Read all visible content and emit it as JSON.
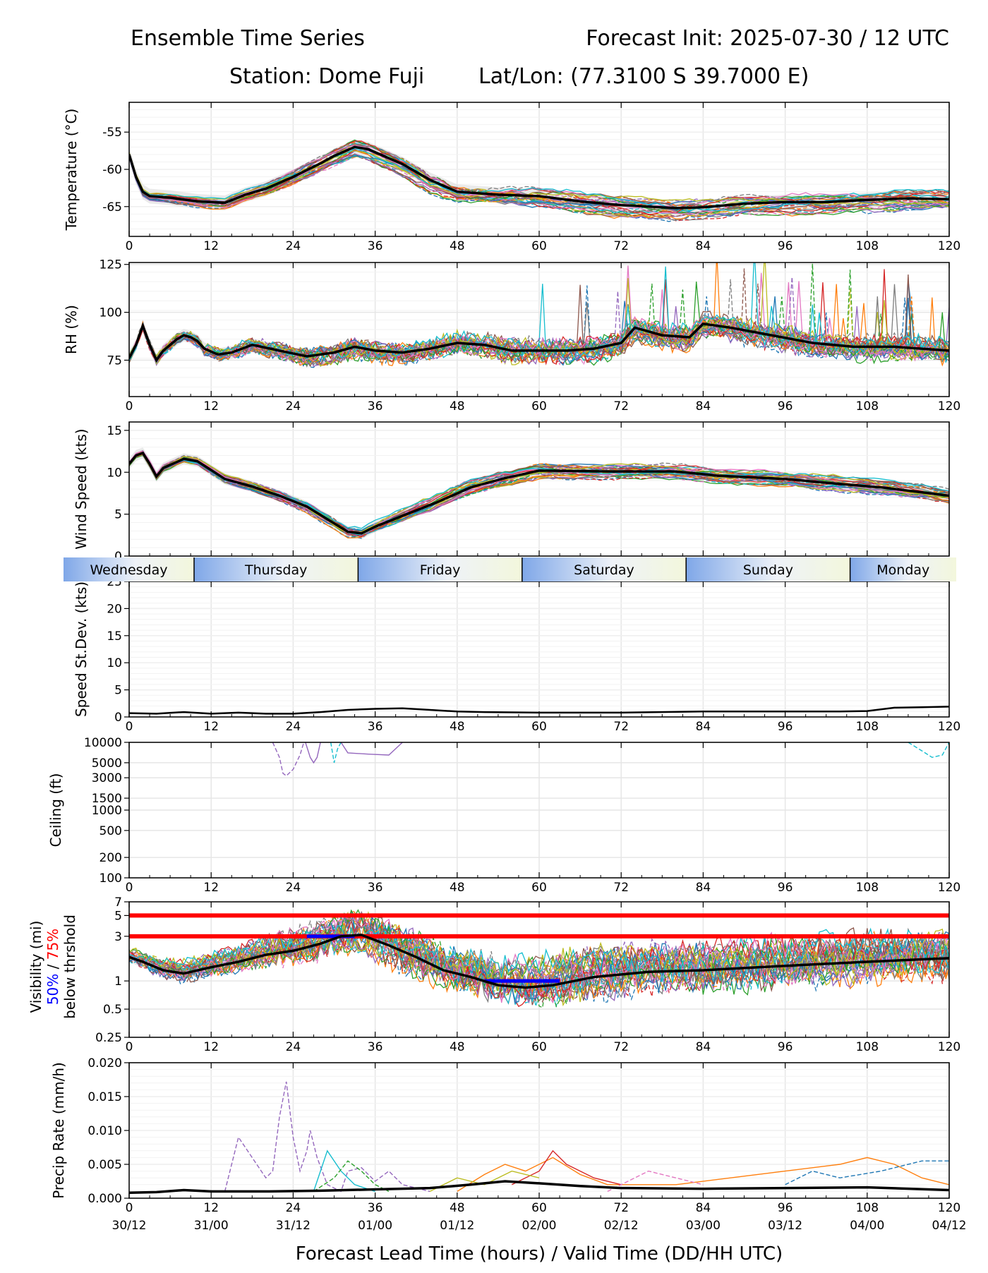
{
  "header": {
    "title_left": "Ensemble Time Series",
    "title_right": "Forecast Init: 2025-07-30 / 12 UTC",
    "station": "Station: Dome Fuji",
    "latlon": "Lat/Lon: (77.3100 S 39.7000 E)"
  },
  "x_axis": {
    "label": "Forecast Lead Time (hours) / Valid Time (DD/HH UTC)",
    "ticks": [
      0,
      12,
      24,
      36,
      48,
      60,
      72,
      84,
      96,
      108,
      120
    ],
    "valid_times": [
      "30/12",
      "31/00",
      "31/12",
      "01/00",
      "01/12",
      "02/00",
      "02/12",
      "03/00",
      "03/12",
      "04/00",
      "04/12"
    ]
  },
  "day_bar": {
    "days": [
      "Wednesday",
      "Thursday",
      "Friday",
      "Saturday",
      "Sunday",
      "Monday"
    ],
    "boundaries": [
      9.5,
      33.5,
      57.5,
      81.5,
      105.5
    ]
  },
  "visibility_label": {
    "line1": "Visibility (mi)",
    "pct50": "50%",
    "sep": " / ",
    "pct75": "75%",
    "line3": "below thrshold"
  },
  "colors": {
    "members": [
      "#1f77b4",
      "#ff7f0e",
      "#2ca02c",
      "#d62728",
      "#9467bd",
      "#8c564b",
      "#e377c2",
      "#7f7f7f",
      "#bcbd22",
      "#17becf"
    ],
    "mean": "#000000",
    "threshold": "#ff0000",
    "band50": "#0000ff"
  },
  "chart_data": [
    {
      "type": "line",
      "ylabel": "Temperature (°C)",
      "ylim": [
        -69,
        -51
      ],
      "yticks": [
        -55,
        -60,
        -65
      ],
      "grid": true,
      "mean": [
        [
          0,
          -58
        ],
        [
          1,
          -61
        ],
        [
          2,
          -63
        ],
        [
          3,
          -63.6
        ],
        [
          6,
          -63.8
        ],
        [
          10,
          -64.3
        ],
        [
          14,
          -64.5
        ],
        [
          17,
          -63.4
        ],
        [
          20,
          -62.6
        ],
        [
          24,
          -61
        ],
        [
          28,
          -59.2
        ],
        [
          30,
          -58.2
        ],
        [
          33,
          -57
        ],
        [
          35,
          -57.3
        ],
        [
          40,
          -59.3
        ],
        [
          44,
          -61.4
        ],
        [
          48,
          -63
        ],
        [
          54,
          -63.4
        ],
        [
          60,
          -63.6
        ],
        [
          66,
          -64.3
        ],
        [
          72,
          -64.8
        ],
        [
          80,
          -65.2
        ],
        [
          84,
          -65.1
        ],
        [
          90,
          -64.6
        ],
        [
          96,
          -64.4
        ],
        [
          102,
          -64.4
        ],
        [
          108,
          -64.1
        ],
        [
          114,
          -63.9
        ],
        [
          120,
          -64
        ]
      ],
      "spread": 1.8
    },
    {
      "type": "line",
      "ylabel": "RH (%)",
      "ylim": [
        56,
        126
      ],
      "yticks": [
        75,
        100,
        125
      ],
      "grid": true,
      "mean": [
        [
          0,
          76
        ],
        [
          1,
          83
        ],
        [
          2,
          93
        ],
        [
          3,
          83
        ],
        [
          4,
          75
        ],
        [
          5,
          80
        ],
        [
          6,
          83
        ],
        [
          7,
          86
        ],
        [
          8,
          88
        ],
        [
          9,
          87
        ],
        [
          10,
          85
        ],
        [
          11,
          81
        ],
        [
          13,
          78
        ],
        [
          15,
          79
        ],
        [
          18,
          83
        ],
        [
          22,
          80
        ],
        [
          26,
          77
        ],
        [
          30,
          79
        ],
        [
          33,
          82
        ],
        [
          36,
          80
        ],
        [
          40,
          79
        ],
        [
          44,
          81
        ],
        [
          48,
          84
        ],
        [
          52,
          83
        ],
        [
          56,
          80
        ],
        [
          60,
          80
        ],
        [
          64,
          80
        ],
        [
          68,
          81
        ],
        [
          72,
          84
        ],
        [
          74,
          92
        ],
        [
          78,
          88
        ],
        [
          82,
          87
        ],
        [
          84,
          94
        ],
        [
          88,
          92
        ],
        [
          94,
          88
        ],
        [
          100,
          84
        ],
        [
          106,
          82
        ],
        [
          112,
          82
        ],
        [
          120,
          80
        ]
      ],
      "spread": 6
    },
    {
      "type": "line",
      "ylabel": "Wind Speed (kts)",
      "ylim": [
        0,
        16
      ],
      "yticks": [
        0,
        5,
        10,
        15
      ],
      "grid": true,
      "mean": [
        [
          0,
          11
        ],
        [
          1,
          12
        ],
        [
          2,
          12.3
        ],
        [
          3,
          11
        ],
        [
          4,
          9.5
        ],
        [
          5,
          10.5
        ],
        [
          8,
          11.6
        ],
        [
          10,
          11.3
        ],
        [
          14,
          9.2
        ],
        [
          18,
          8.3
        ],
        [
          22,
          7.2
        ],
        [
          26,
          5.9
        ],
        [
          29,
          4.4
        ],
        [
          32,
          2.9
        ],
        [
          34,
          2.7
        ],
        [
          36,
          3.5
        ],
        [
          40,
          4.8
        ],
        [
          45,
          6.4
        ],
        [
          50,
          8.2
        ],
        [
          55,
          9.3
        ],
        [
          60,
          10.2
        ],
        [
          70,
          10.1
        ],
        [
          80,
          10.1
        ],
        [
          86,
          9.6
        ],
        [
          96,
          9.2
        ],
        [
          104,
          8.6
        ],
        [
          110,
          8.2
        ],
        [
          120,
          7.2
        ]
      ],
      "spread": 1.2
    },
    {
      "type": "line",
      "ylabel": "Speed St.Dev. (kts)",
      "ylim": [
        0,
        25
      ],
      "yticks": [
        0,
        5,
        10,
        15,
        20,
        25
      ],
      "grid": true,
      "mean": [
        [
          0,
          0.7
        ],
        [
          4,
          0.6
        ],
        [
          8,
          0.9
        ],
        [
          12,
          0.6
        ],
        [
          16,
          0.8
        ],
        [
          20,
          0.6
        ],
        [
          24,
          0.6
        ],
        [
          28,
          0.9
        ],
        [
          32,
          1.3
        ],
        [
          36,
          1.5
        ],
        [
          40,
          1.6
        ],
        [
          44,
          1.3
        ],
        [
          48,
          1.0
        ],
        [
          52,
          0.9
        ],
        [
          60,
          0.8
        ],
        [
          72,
          0.8
        ],
        [
          84,
          1.0
        ],
        [
          96,
          1.0
        ],
        [
          104,
          1.0
        ],
        [
          108,
          1.1
        ],
        [
          112,
          1.7
        ],
        [
          116,
          1.8
        ],
        [
          120,
          1.9
        ]
      ]
    },
    {
      "type": "line",
      "ylabel": "Ceiling (ft)",
      "scale": "log",
      "ylim": [
        100,
        10000
      ],
      "yticks": [
        100,
        200,
        500,
        1000,
        1500,
        3000,
        5000,
        10000
      ],
      "grid": true,
      "members": [
        {
          "color_index": 4,
          "points": [
            [
              21,
              10000
            ],
            [
              22,
              6000
            ],
            [
              22.5,
              3500
            ],
            [
              23,
              3200
            ],
            [
              24,
              4000
            ],
            [
              25,
              6500
            ],
            [
              25.5,
              9500
            ]
          ]
        },
        {
          "color_index": 4,
          "points": [
            [
              25.8,
              10000
            ],
            [
              26.5,
              6000
            ],
            [
              27,
              5000
            ],
            [
              27.5,
              6000
            ],
            [
              28,
              10000
            ]
          ]
        },
        {
          "color_index": 9,
          "points": [
            [
              29.5,
              10000
            ],
            [
              30,
              5000
            ],
            [
              30.5,
              8000
            ],
            [
              31,
              10000
            ]
          ]
        },
        {
          "color_index": 4,
          "points": [
            [
              31,
              10000
            ],
            [
              32,
              7000
            ],
            [
              35,
              6700
            ],
            [
              38,
              6500
            ],
            [
              40,
              10000
            ]
          ]
        },
        {
          "color_index": 9,
          "points": [
            [
              114,
              10000
            ],
            [
              116,
              7500
            ],
            [
              117.5,
              6000
            ],
            [
              119,
              6500
            ],
            [
              120,
              10000
            ]
          ]
        }
      ]
    },
    {
      "type": "line",
      "ylabel": "Visibility (mi)",
      "scale": "log",
      "ylim": [
        0.25,
        7
      ],
      "yticks": [
        0.25,
        0.5,
        1,
        3,
        5,
        7
      ],
      "grid": true,
      "thresholds": [
        5,
        3
      ],
      "band50": [
        [
          26,
          3
        ],
        [
          33,
          3
        ],
        [
          52,
          1
        ],
        [
          63,
          1
        ]
      ],
      "band75": [
        [
          52,
          1
        ],
        [
          63,
          1
        ],
        [
          118,
          3
        ]
      ],
      "mean": [
        [
          0,
          1.8
        ],
        [
          2,
          1.6
        ],
        [
          5,
          1.3
        ],
        [
          8,
          1.2
        ],
        [
          12,
          1.4
        ],
        [
          16,
          1.6
        ],
        [
          20,
          1.9
        ],
        [
          24,
          2.1
        ],
        [
          28,
          2.5
        ],
        [
          31,
          3
        ],
        [
          34,
          3.1
        ],
        [
          38,
          2.4
        ],
        [
          42,
          1.8
        ],
        [
          46,
          1.3
        ],
        [
          50,
          1.1
        ],
        [
          54,
          0.9
        ],
        [
          58,
          0.85
        ],
        [
          62,
          0.9
        ],
        [
          68,
          1.1
        ],
        [
          76,
          1.25
        ],
        [
          84,
          1.3
        ],
        [
          92,
          1.4
        ],
        [
          100,
          1.5
        ],
        [
          108,
          1.6
        ],
        [
          116,
          1.7
        ],
        [
          120,
          1.75
        ]
      ],
      "spread": 0.4
    },
    {
      "type": "line",
      "ylabel": "Precip Rate (mm/h)",
      "ylim": [
        0,
        0.02
      ],
      "yticks": [
        0.0,
        0.005,
        0.01,
        0.015,
        0.02
      ],
      "grid": true,
      "mean": [
        [
          0,
          0.0008
        ],
        [
          4,
          0.0009
        ],
        [
          8,
          0.0012
        ],
        [
          12,
          0.001
        ],
        [
          20,
          0.001
        ],
        [
          28,
          0.0011
        ],
        [
          36,
          0.0013
        ],
        [
          44,
          0.0015
        ],
        [
          50,
          0.002
        ],
        [
          55,
          0.0025
        ],
        [
          60,
          0.0022
        ],
        [
          66,
          0.0018
        ],
        [
          72,
          0.0015
        ],
        [
          84,
          0.0014
        ],
        [
          96,
          0.0015
        ],
        [
          108,
          0.0016
        ],
        [
          120,
          0.0012
        ]
      ],
      "members": [
        {
          "color_index": 4,
          "points": [
            [
              14,
              0.001
            ],
            [
              16,
              0.009
            ],
            [
              18,
              0.006
            ],
            [
              20,
              0.003
            ],
            [
              21,
              0.004
            ],
            [
              22,
              0.012
            ],
            [
              23,
              0.0172
            ],
            [
              24,
              0.009
            ],
            [
              25,
              0.004
            ],
            [
              26,
              0.007
            ],
            [
              26.5,
              0.01
            ],
            [
              27.5,
              0.006
            ],
            [
              29,
              0.002
            ],
            [
              31,
              0.001
            ],
            [
              32,
              0.004
            ],
            [
              34,
              0.0045
            ],
            [
              36,
              0.0025
            ],
            [
              38,
              0.004
            ],
            [
              40,
              0.002
            ],
            [
              44,
              0.001
            ]
          ]
        },
        {
          "color_index": 9,
          "points": [
            [
              27,
              0.001
            ],
            [
              29,
              0.007
            ],
            [
              31,
              0.004
            ],
            [
              33,
              0.002
            ],
            [
              36,
              0.001
            ]
          ]
        },
        {
          "color_index": 2,
          "points": [
            [
              27,
              0.001
            ],
            [
              30,
              0.003
            ],
            [
              32,
              0.0055
            ],
            [
              34,
              0.004
            ],
            [
              36,
              0.002
            ],
            [
              38,
              0.001
            ]
          ]
        },
        {
          "color_index": 1,
          "points": [
            [
              48,
              0.001
            ],
            [
              52,
              0.0035
            ],
            [
              55,
              0.005
            ],
            [
              58,
              0.004
            ],
            [
              62,
              0.006
            ],
            [
              66,
              0.0035
            ],
            [
              70,
              0.002
            ],
            [
              80,
              0.002
            ],
            [
              88,
              0.003
            ],
            [
              96,
              0.004
            ],
            [
              104,
              0.005
            ],
            [
              108,
              0.006
            ],
            [
              112,
              0.005
            ],
            [
              116,
              0.003
            ],
            [
              120,
              0.002
            ]
          ]
        },
        {
          "color_index": 0,
          "points": [
            [
              96,
              0.002
            ],
            [
              100,
              0.004
            ],
            [
              104,
              0.003
            ],
            [
              110,
              0.004
            ],
            [
              116,
              0.0055
            ],
            [
              120,
              0.0055
            ]
          ]
        },
        {
          "color_index": 3,
          "points": [
            [
              56,
              0.002
            ],
            [
              60,
              0.004
            ],
            [
              62,
              0.007
            ],
            [
              64,
              0.005
            ],
            [
              68,
              0.003
            ],
            [
              72,
              0.002
            ]
          ]
        },
        {
          "color_index": 6,
          "points": [
            [
              70,
              0.001
            ],
            [
              76,
              0.004
            ],
            [
              80,
              0.003
            ],
            [
              84,
              0.002
            ]
          ]
        },
        {
          "color_index": 8,
          "points": [
            [
              44,
              0.001
            ],
            [
              48,
              0.003
            ],
            [
              52,
              0.002
            ],
            [
              56,
              0.004
            ],
            [
              60,
              0.003
            ]
          ]
        }
      ]
    }
  ]
}
